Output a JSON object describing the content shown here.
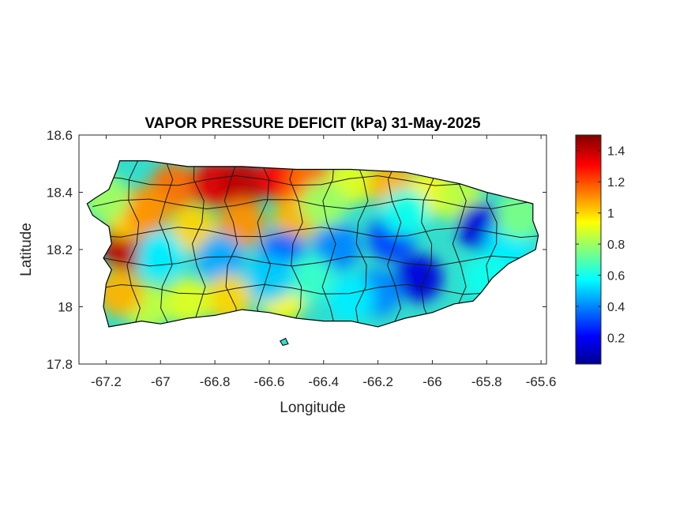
{
  "title": "VAPOR PRESSURE DEFICIT (kPa) 31-May-2025",
  "x_axis": {
    "label": "Longitude",
    "range": [
      -67.3,
      -65.58
    ],
    "ticks": [
      -67.2,
      -67,
      -66.8,
      -66.6,
      -66.4,
      -66.2,
      -66,
      -65.8,
      -65.6
    ],
    "tick_labels": [
      "-67.2",
      "-67",
      "-66.8",
      "-66.6",
      "-66.4",
      "-66.2",
      "-66",
      "-65.8",
      "-65.6"
    ]
  },
  "y_axis": {
    "label": "Latitude",
    "range": [
      17.8,
      18.6
    ],
    "ticks": [
      17.8,
      18,
      18.2,
      18.4,
      18.6
    ],
    "tick_labels": [
      "17.8",
      "18",
      "18.2",
      "18.4",
      "18.6"
    ]
  },
  "colorbar": {
    "range": [
      0.03,
      1.5
    ],
    "ticks": [
      0.2,
      0.4,
      0.6,
      0.8,
      1,
      1.2,
      1.4
    ],
    "tick_labels": [
      "0.2",
      "0.4",
      "0.6",
      "0.8",
      "1",
      "1.2",
      "1.4"
    ],
    "colormap": "jet",
    "colors": [
      "#00008f",
      "#0000ff",
      "#00ffff",
      "#ffff00",
      "#ff0000",
      "#800000"
    ]
  },
  "map": {
    "region": "Puerto Rico",
    "coastline_color": "#000000",
    "outline": [
      [
        -67.27,
        18.36
      ],
      [
        -67.24,
        18.38
      ],
      [
        -67.19,
        18.41
      ],
      [
        -67.16,
        18.48
      ],
      [
        -67.15,
        18.51
      ],
      [
        -67.05,
        18.51
      ],
      [
        -66.9,
        18.49
      ],
      [
        -66.7,
        18.49
      ],
      [
        -66.5,
        18.48
      ],
      [
        -66.3,
        18.48
      ],
      [
        -66.1,
        18.47
      ],
      [
        -66.0,
        18.45
      ],
      [
        -65.9,
        18.43
      ],
      [
        -65.8,
        18.4
      ],
      [
        -65.67,
        18.37
      ],
      [
        -65.63,
        18.36
      ],
      [
        -65.63,
        18.3
      ],
      [
        -65.61,
        18.25
      ],
      [
        -65.62,
        18.2
      ],
      [
        -65.68,
        18.17
      ],
      [
        -65.72,
        18.15
      ],
      [
        -65.78,
        18.1
      ],
      [
        -65.82,
        18.05
      ],
      [
        -65.85,
        18.02
      ],
      [
        -65.92,
        18.01
      ],
      [
        -66.0,
        17.98
      ],
      [
        -66.1,
        17.96
      ],
      [
        -66.2,
        17.93
      ],
      [
        -66.3,
        17.95
      ],
      [
        -66.4,
        17.95
      ],
      [
        -66.5,
        17.96
      ],
      [
        -66.6,
        17.98
      ],
      [
        -66.7,
        17.99
      ],
      [
        -66.8,
        17.97
      ],
      [
        -66.9,
        17.96
      ],
      [
        -67.0,
        17.94
      ],
      [
        -67.07,
        17.95
      ],
      [
        -67.19,
        17.93
      ],
      [
        -67.21,
        18.0
      ],
      [
        -67.2,
        18.08
      ],
      [
        -67.18,
        18.13
      ],
      [
        -67.21,
        18.17
      ],
      [
        -67.18,
        18.22
      ],
      [
        -67.19,
        18.28
      ],
      [
        -67.25,
        18.32
      ],
      [
        -67.27,
        18.36
      ]
    ],
    "islet": [
      [
        -66.56,
        17.88
      ],
      [
        -66.54,
        17.89
      ],
      [
        -66.53,
        17.87
      ],
      [
        -66.55,
        17.865
      ]
    ]
  },
  "chart_data": {
    "type": "heatmap",
    "title": "VAPOR PRESSURE DEFICIT (kPa) 31-May-2025",
    "xlabel": "Longitude",
    "ylabel": "Latitude",
    "xlim": [
      -67.3,
      -65.58
    ],
    "ylim": [
      17.8,
      18.6
    ],
    "color_range": [
      0.03,
      1.5
    ],
    "colorbar_label": "",
    "values_kpa": [
      {
        "lon": -66.95,
        "lat": 18.42,
        "value": 1.15
      },
      {
        "lon": -66.8,
        "lat": 18.43,
        "value": 1.35
      },
      {
        "lon": -66.7,
        "lat": 18.43,
        "value": 1.4
      },
      {
        "lon": -66.55,
        "lat": 18.45,
        "value": 1.3
      },
      {
        "lon": -66.45,
        "lat": 18.44,
        "value": 1.15
      },
      {
        "lon": -66.3,
        "lat": 18.44,
        "value": 0.9
      },
      {
        "lon": -66.15,
        "lat": 18.43,
        "value": 1.05
      },
      {
        "lon": -66.0,
        "lat": 18.4,
        "value": 0.95
      },
      {
        "lon": -65.9,
        "lat": 18.38,
        "value": 0.85
      },
      {
        "lon": -67.13,
        "lat": 18.21,
        "value": 1.4
      },
      {
        "lon": -67.12,
        "lat": 18.32,
        "value": 1.0
      },
      {
        "lon": -67.05,
        "lat": 18.34,
        "value": 1.1
      },
      {
        "lon": -66.88,
        "lat": 18.27,
        "value": 1.0
      },
      {
        "lon": -66.7,
        "lat": 18.29,
        "value": 1.1
      },
      {
        "lon": -66.5,
        "lat": 18.31,
        "value": 1.05
      },
      {
        "lon": -66.78,
        "lat": 18.17,
        "value": 0.45
      },
      {
        "lon": -66.55,
        "lat": 18.18,
        "value": 0.35
      },
      {
        "lon": -66.35,
        "lat": 18.21,
        "value": 0.4
      },
      {
        "lon": -66.15,
        "lat": 18.24,
        "value": 0.3
      },
      {
        "lon": -66.05,
        "lat": 18.1,
        "value": 0.15
      },
      {
        "lon": -65.82,
        "lat": 18.28,
        "value": 0.15
      },
      {
        "lon": -65.72,
        "lat": 18.22,
        "value": 0.55
      },
      {
        "lon": -65.8,
        "lat": 18.1,
        "value": 0.6
      },
      {
        "lon": -66.2,
        "lat": 18.05,
        "value": 0.4
      },
      {
        "lon": -66.3,
        "lat": 18.03,
        "value": 0.55
      },
      {
        "lon": -66.55,
        "lat": 18.03,
        "value": 0.95
      },
      {
        "lon": -66.75,
        "lat": 18.03,
        "value": 1.0
      },
      {
        "lon": -66.9,
        "lat": 18.02,
        "value": 0.9
      },
      {
        "lon": -67.05,
        "lat": 18.0,
        "value": 0.85
      },
      {
        "lon": -67.15,
        "lat": 18.05,
        "value": 1.05
      },
      {
        "lon": -67.2,
        "lat": 18.38,
        "value": 0.8
      },
      {
        "lon": -67.0,
        "lat": 18.18,
        "value": 0.55
      },
      {
        "lon": -66.45,
        "lat": 18.1,
        "value": 0.65
      },
      {
        "lon": -66.6,
        "lat": 18.1,
        "value": 0.5
      },
      {
        "lon": -65.68,
        "lat": 18.32,
        "value": 0.75
      },
      {
        "lon": -66.1,
        "lat": 18.33,
        "value": 0.6
      },
      {
        "lon": -66.4,
        "lat": 18.36,
        "value": 0.8
      }
    ]
  }
}
